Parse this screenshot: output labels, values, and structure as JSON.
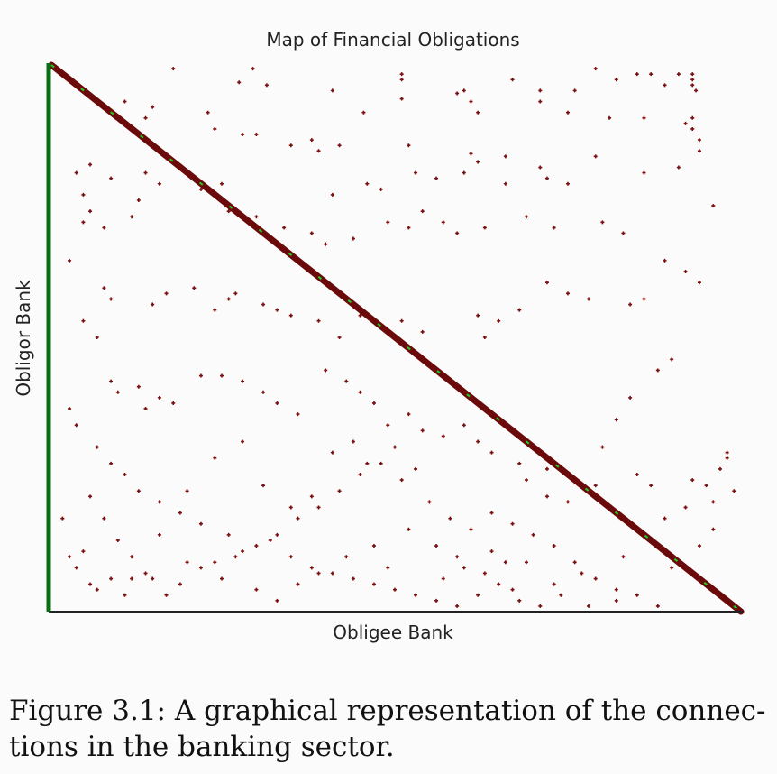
{
  "chart_data": {
    "type": "scatter",
    "title": "Map of Financial Obligations",
    "xlabel": "Obligee Bank",
    "ylabel": "Obligor Bank",
    "xlim": [
      0,
      100
    ],
    "ylim": [
      0,
      100
    ],
    "grid": false,
    "legend": "none",
    "colors": {
      "points": "#7a0d0d",
      "diagonal": "#6b0a0a",
      "diagonal_accent": "#19d319",
      "y_axis": "#0a6e16",
      "x_axis": "#222222"
    },
    "diagonal": {
      "from": [
        0,
        100
      ],
      "to": [
        100,
        0
      ]
    },
    "points": [
      [
        18,
        99
      ],
      [
        29.5,
        99
      ],
      [
        51,
        98
      ],
      [
        51,
        97
      ],
      [
        67,
        97
      ],
      [
        71,
        95
      ],
      [
        76,
        95
      ],
      [
        79,
        99
      ],
      [
        82,
        97
      ],
      [
        85,
        98
      ],
      [
        87,
        98
      ],
      [
        89,
        96
      ],
      [
        91,
        98
      ],
      [
        93,
        98
      ],
      [
        93,
        97
      ],
      [
        93,
        96
      ],
      [
        93.5,
        95
      ],
      [
        27.5,
        96.5
      ],
      [
        31.5,
        96
      ],
      [
        41,
        95
      ],
      [
        51,
        93.5
      ],
      [
        59,
        94.5
      ],
      [
        60,
        95
      ],
      [
        61,
        93
      ],
      [
        62,
        91
      ],
      [
        71,
        93
      ],
      [
        15,
        92
      ],
      [
        23,
        91
      ],
      [
        45.5,
        91
      ],
      [
        75,
        91
      ],
      [
        81,
        90
      ],
      [
        86,
        90
      ],
      [
        92,
        89
      ],
      [
        93,
        90
      ],
      [
        11,
        93
      ],
      [
        14,
        90
      ],
      [
        24,
        88
      ],
      [
        28,
        87
      ],
      [
        30,
        87
      ],
      [
        35,
        85
      ],
      [
        38,
        86
      ],
      [
        39,
        84
      ],
      [
        42,
        85
      ],
      [
        52,
        85
      ],
      [
        61,
        83.5
      ],
      [
        62,
        82
      ],
      [
        66,
        83
      ],
      [
        79,
        83
      ],
      [
        93,
        88
      ],
      [
        94,
        86
      ],
      [
        94,
        84
      ],
      [
        6,
        81.5
      ],
      [
        9,
        79
      ],
      [
        14,
        80
      ],
      [
        16,
        78
      ],
      [
        22,
        77
      ],
      [
        25,
        78
      ],
      [
        41,
        76
      ],
      [
        46,
        78
      ],
      [
        48,
        77
      ],
      [
        53,
        80
      ],
      [
        56,
        79
      ],
      [
        60,
        80
      ],
      [
        66,
        78
      ],
      [
        71,
        81
      ],
      [
        72,
        79
      ],
      [
        75,
        78
      ],
      [
        86,
        80
      ],
      [
        91,
        81
      ],
      [
        96,
        74
      ],
      [
        4,
        80
      ],
      [
        5,
        76
      ],
      [
        6,
        73
      ],
      [
        8,
        70
      ],
      [
        12,
        72
      ],
      [
        13,
        75
      ],
      [
        26,
        73
      ],
      [
        30,
        72
      ],
      [
        34,
        70
      ],
      [
        38,
        69
      ],
      [
        40,
        67
      ],
      [
        44,
        68
      ],
      [
        49,
        71
      ],
      [
        52,
        70
      ],
      [
        54,
        73
      ],
      [
        57,
        71
      ],
      [
        59,
        69
      ],
      [
        63,
        70
      ],
      [
        69,
        72
      ],
      [
        73,
        70
      ],
      [
        80,
        71
      ],
      [
        83,
        69
      ],
      [
        5,
        71
      ],
      [
        3,
        64
      ],
      [
        8,
        59
      ],
      [
        9,
        57
      ],
      [
        15,
        56
      ],
      [
        17,
        58
      ],
      [
        21,
        59
      ],
      [
        24,
        55
      ],
      [
        26,
        57
      ],
      [
        27,
        58
      ],
      [
        31,
        56
      ],
      [
        33,
        55
      ],
      [
        35,
        54
      ],
      [
        39,
        53
      ],
      [
        42,
        50
      ],
      [
        45,
        54
      ],
      [
        48,
        52
      ],
      [
        51,
        53
      ],
      [
        54,
        51
      ],
      [
        62,
        54
      ],
      [
        63,
        50
      ],
      [
        65,
        53
      ],
      [
        68,
        55
      ],
      [
        72,
        60
      ],
      [
        75,
        58
      ],
      [
        78,
        57
      ],
      [
        84,
        56
      ],
      [
        86,
        57
      ],
      [
        89,
        64
      ],
      [
        92,
        62
      ],
      [
        94,
        60
      ],
      [
        5,
        53
      ],
      [
        7,
        50
      ],
      [
        9,
        42
      ],
      [
        10,
        40
      ],
      [
        13,
        41
      ],
      [
        14,
        37
      ],
      [
        16,
        39
      ],
      [
        18,
        38
      ],
      [
        22,
        43
      ],
      [
        25,
        43
      ],
      [
        28,
        42
      ],
      [
        31,
        40
      ],
      [
        33,
        38
      ],
      [
        36,
        36
      ],
      [
        40,
        44
      ],
      [
        43,
        42
      ],
      [
        45,
        40
      ],
      [
        47,
        38
      ],
      [
        49,
        34
      ],
      [
        52,
        36
      ],
      [
        54,
        33
      ],
      [
        57,
        32
      ],
      [
        60,
        34
      ],
      [
        62,
        31
      ],
      [
        64,
        29
      ],
      [
        68,
        27
      ],
      [
        72,
        26
      ],
      [
        76,
        24
      ],
      [
        79,
        23
      ],
      [
        85,
        25
      ],
      [
        87,
        23
      ],
      [
        3,
        37
      ],
      [
        4,
        34
      ],
      [
        7,
        30
      ],
      [
        9,
        27
      ],
      [
        11,
        25
      ],
      [
        13,
        22
      ],
      [
        16,
        20
      ],
      [
        19,
        18
      ],
      [
        22,
        16
      ],
      [
        26,
        14
      ],
      [
        28,
        11
      ],
      [
        32,
        13
      ],
      [
        35,
        10
      ],
      [
        38,
        8
      ],
      [
        41,
        7
      ],
      [
        44,
        6
      ],
      [
        47,
        5
      ],
      [
        50,
        4
      ],
      [
        53,
        3
      ],
      [
        56,
        2
      ],
      [
        59,
        1
      ],
      [
        62,
        3
      ],
      [
        65,
        5
      ],
      [
        68,
        2
      ],
      [
        71,
        1
      ],
      [
        74,
        3
      ],
      [
        78,
        1
      ],
      [
        82,
        4
      ],
      [
        90,
        8
      ],
      [
        94,
        12
      ],
      [
        96,
        15
      ],
      [
        6,
        21
      ],
      [
        8,
        17
      ],
      [
        10,
        13
      ],
      [
        12,
        10
      ],
      [
        14,
        7
      ],
      [
        15,
        6
      ],
      [
        19,
        5
      ],
      [
        22,
        8
      ],
      [
        24,
        9
      ],
      [
        27,
        10
      ],
      [
        30,
        12
      ],
      [
        33,
        14
      ],
      [
        36,
        17
      ],
      [
        39,
        19
      ],
      [
        42,
        22
      ],
      [
        45,
        25
      ],
      [
        48,
        27
      ],
      [
        51,
        24
      ],
      [
        55,
        20
      ],
      [
        58,
        17
      ],
      [
        61,
        15
      ],
      [
        64,
        18
      ],
      [
        67,
        16
      ],
      [
        70,
        14
      ],
      [
        73,
        12
      ],
      [
        76,
        9
      ],
      [
        79,
        6
      ],
      [
        82,
        2
      ],
      [
        85,
        3
      ],
      [
        88,
        1
      ],
      [
        2,
        17
      ],
      [
        5,
        11
      ],
      [
        6,
        5
      ],
      [
        12,
        6
      ],
      [
        16,
        14
      ],
      [
        20,
        22
      ],
      [
        24,
        28
      ],
      [
        28,
        31
      ],
      [
        31,
        23
      ],
      [
        35,
        19
      ],
      [
        38,
        21
      ],
      [
        41,
        29
      ],
      [
        44,
        31
      ],
      [
        46,
        27
      ],
      [
        50,
        30
      ],
      [
        53,
        26
      ],
      [
        56,
        12
      ],
      [
        59,
        10
      ],
      [
        63,
        7
      ],
      [
        66,
        9
      ],
      [
        69,
        24
      ],
      [
        72,
        21
      ],
      [
        75,
        20
      ],
      [
        80,
        30
      ],
      [
        82,
        35
      ],
      [
        84,
        39
      ],
      [
        88,
        44
      ],
      [
        90,
        46
      ],
      [
        93,
        24
      ],
      [
        96,
        20
      ],
      [
        98,
        28
      ],
      [
        99,
        22
      ],
      [
        3,
        10
      ],
      [
        4,
        8
      ],
      [
        7,
        4
      ],
      [
        9,
        6
      ],
      [
        11,
        3
      ],
      [
        17,
        3
      ],
      [
        20,
        9
      ],
      [
        25,
        6
      ],
      [
        30,
        4
      ],
      [
        33,
        2
      ],
      [
        36,
        5
      ],
      [
        39,
        7
      ],
      [
        43,
        10
      ],
      [
        47,
        12
      ],
      [
        49,
        8
      ],
      [
        52,
        15
      ],
      [
        57,
        6
      ],
      [
        60,
        8
      ],
      [
        64,
        11
      ],
      [
        67,
        4
      ],
      [
        69,
        9
      ],
      [
        73,
        5
      ],
      [
        77,
        7
      ],
      [
        83,
        10
      ],
      [
        86,
        14
      ],
      [
        89,
        17
      ],
      [
        92,
        19
      ],
      [
        95,
        23
      ],
      [
        97,
        26
      ],
      [
        98,
        29
      ]
    ]
  }
}
